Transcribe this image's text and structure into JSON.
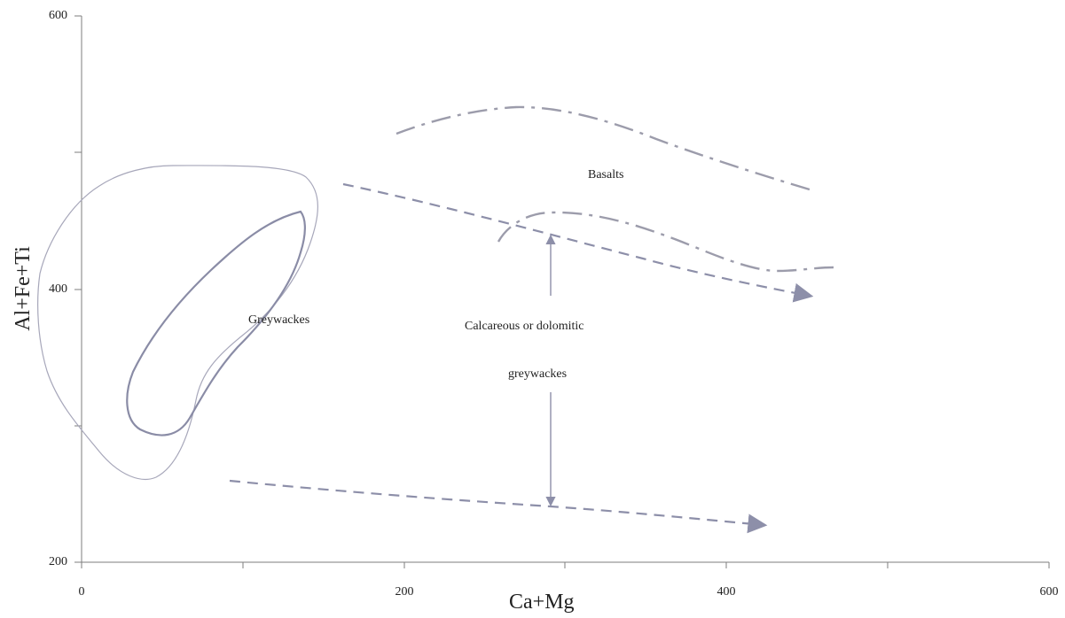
{
  "chart_data": {
    "type": "diagram",
    "xlabel": "Ca+Mg",
    "ylabel": "Al+Fe+Ti",
    "xlim": [
      0,
      600
    ],
    "ylim": [
      200,
      600
    ],
    "x_ticks": [
      "0",
      "200",
      "400",
      "600"
    ],
    "y_ticks": [
      "200",
      "400",
      "600"
    ],
    "labels": {
      "greywackes": "Greywackes",
      "calcareous_line1": "Calcareous or dolomitic",
      "calcareous_line2": "greywackes",
      "basalts": "Basalts"
    },
    "regions": {
      "greywackes_outer": [
        [
          110,
          490
        ],
        [
          150,
          490
        ],
        [
          185,
          475
        ],
        [
          195,
          455
        ],
        [
          195,
          430
        ],
        [
          180,
          380
        ],
        [
          150,
          340
        ],
        [
          120,
          300
        ],
        [
          105,
          275
        ],
        [
          90,
          262
        ],
        [
          75,
          270
        ],
        [
          55,
          300
        ],
        [
          40,
          340
        ],
        [
          38,
          380
        ],
        [
          45,
          420
        ],
        [
          65,
          460
        ],
        [
          90,
          483
        ],
        [
          110,
          490
        ]
      ],
      "greywackes_inner": [
        [
          185,
          458
        ],
        [
          190,
          445
        ],
        [
          180,
          410
        ],
        [
          150,
          360
        ],
        [
          120,
          320
        ],
        [
          95,
          292
        ],
        [
          78,
          290
        ],
        [
          70,
          300
        ],
        [
          72,
          330
        ],
        [
          95,
          380
        ],
        [
          125,
          420
        ],
        [
          155,
          450
        ],
        [
          185,
          458
        ]
      ],
      "basalt_upper_boundary": [
        [
          195,
          514
        ],
        [
          270,
          536
        ],
        [
          330,
          527
        ],
        [
          375,
          508
        ],
        [
          415,
          490
        ],
        [
          450,
          474
        ]
      ],
      "basalt_lower_boundary": [
        [
          260,
          432
        ],
        [
          275,
          452
        ],
        [
          315,
          450
        ],
        [
          360,
          439
        ],
        [
          400,
          419
        ],
        [
          430,
          414
        ],
        [
          468,
          418
        ]
      ],
      "calcareous_upper_arrow": [
        [
          163,
          479
        ],
        [
          350,
          440
        ],
        [
          455,
          395
        ]
      ],
      "calcareous_lower_arrow": [
        [
          95,
          260
        ],
        [
          300,
          245
        ],
        [
          425,
          225
        ]
      ],
      "vertical_arrow": [
        [
          292,
          436
        ],
        [
          292,
          240
        ]
      ]
    },
    "label_positions_data": {
      "greywackes": [
        132,
        368
      ],
      "calcareous": [
        290,
        348
      ],
      "calcareous_line2": [
        290,
        330
      ],
      "basalts": [
        330,
        484
      ]
    },
    "style": {
      "region_outer_color": "#a7a7ba",
      "region_inner_color": "#8a8ca6",
      "boundary_color": "#9c9cab",
      "arrow_color": "#8d8fa9"
    }
  }
}
